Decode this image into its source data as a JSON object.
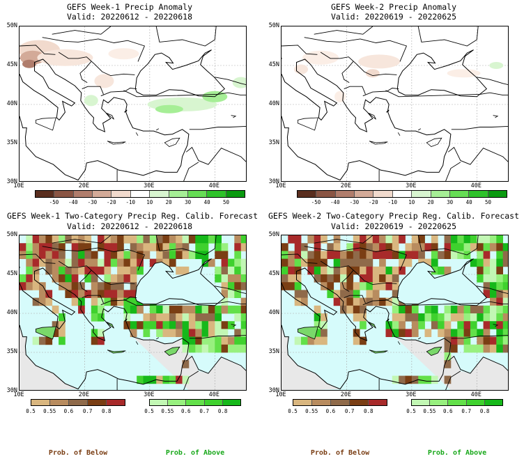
{
  "panels": [
    {
      "title_line1": "GEFS Week-1 Precip Anomaly",
      "title_line2": "Valid: 20220612 - 20220618"
    },
    {
      "title_line1": "GEFS Week-2 Precip Anomaly",
      "title_line2": "Valid: 20220619 - 20220625"
    },
    {
      "title_line1": "GEFS Week-1 Two-Category Precip Reg. Calib. Forecast",
      "title_line2": "Valid: 20220612 - 20220618"
    },
    {
      "title_line1": "GEFS Week-2 Two-Category Precip Reg. Calib. Forecast",
      "title_line2": "Valid: 20220619 - 20220625"
    }
  ],
  "map_axes": {
    "lat_labels": [
      "50N",
      "45N",
      "40N",
      "35N",
      "30N"
    ],
    "lon_labels": [
      "10E",
      "20E",
      "30E",
      "40E"
    ]
  },
  "anomaly_colorbar": {
    "labels": [
      "-50",
      "-40",
      "-30",
      "-20",
      "-10",
      "10",
      "20",
      "30",
      "40",
      "50"
    ],
    "colors": [
      "#5a2e1f",
      "#8a5544",
      "#b07d6c",
      "#d3aa98",
      "#f1dacd",
      "#ffffff",
      "#d8f5d0",
      "#a6ee96",
      "#66dd55",
      "#2ec22a",
      "#0a9a10"
    ]
  },
  "prob_colorbar_below": {
    "labels": [
      "0.5",
      "0.55",
      "0.6",
      "0.7",
      "0.8"
    ],
    "colors": [
      "#d9b67f",
      "#b88c5f",
      "#8f6a4a",
      "#7a3e14",
      "#a82a2a"
    ]
  },
  "prob_colorbar_above": {
    "labels": [
      "0.5",
      "0.55",
      "0.6",
      "0.7",
      "0.8"
    ],
    "colors": [
      "#c2f7b4",
      "#98f07f",
      "#63e04a",
      "#3fd12e",
      "#16b81a"
    ]
  },
  "legend": {
    "below_label": "Prob. of Below",
    "above_label": "Prob. of Above",
    "below_color": "#7a3e14",
    "above_color": "#18a81a"
  },
  "colors": {
    "sea_prob": "#d6fbfb",
    "land_nodata": "#e8e8e8"
  }
}
